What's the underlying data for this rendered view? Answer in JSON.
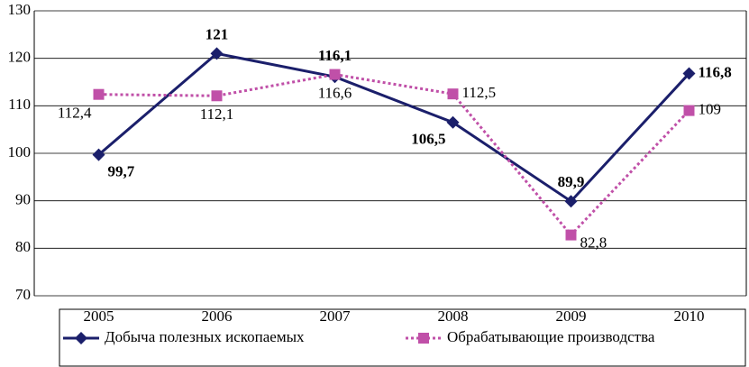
{
  "chart_data": {
    "type": "line",
    "categories": [
      "2005",
      "2006",
      "2007",
      "2008",
      "2009",
      "2010"
    ],
    "series": [
      {
        "name": "Добыча полезных ископаемых",
        "color": "#1b1f6b",
        "marker": "diamond",
        "dash": false,
        "values": [
          99.7,
          121,
          116.1,
          106.5,
          89.9,
          116.8
        ],
        "value_labels": [
          "99,7",
          "121",
          "116,1",
          "106,5",
          "89,9",
          "116,8"
        ]
      },
      {
        "name": "Обрабатывающие производства",
        "color": "#c050a8",
        "marker": "square",
        "dash": true,
        "values": [
          112.4,
          112.1,
          116.6,
          112.5,
          82.8,
          109
        ],
        "value_labels": [
          "112,4",
          "112,1",
          "116,6",
          "112,5",
          "82,8",
          "109"
        ]
      }
    ],
    "ylim": [
      70,
      130
    ],
    "yticks": [
      70,
      80,
      90,
      100,
      110,
      120,
      130
    ],
    "grid": true,
    "legend": "bottom"
  }
}
